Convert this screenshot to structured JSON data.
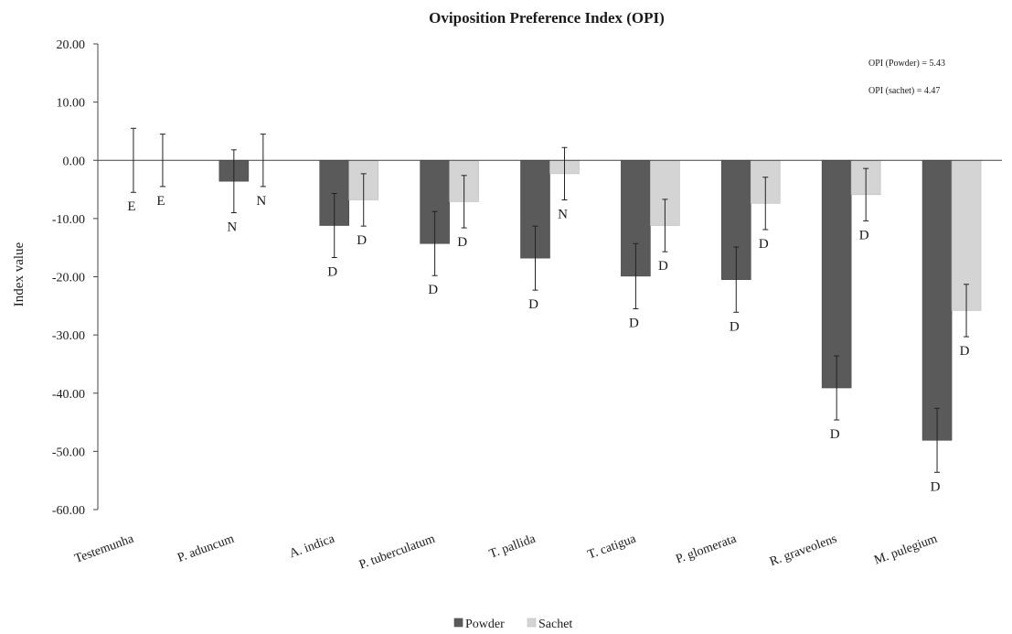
{
  "chart_data": {
    "type": "bar",
    "title": "Oviposition Preference Index (OPI)",
    "ylabel": "Index value",
    "xlabel": "",
    "ylim": [
      -60,
      20
    ],
    "yticks": [
      20,
      10,
      0,
      -10,
      -20,
      -30,
      -40,
      -50,
      -60
    ],
    "ytick_labels": [
      "20.00",
      "10.00",
      "0.00",
      "-10.00",
      "-20.00",
      "-30.00",
      "-40.00",
      "-50.00",
      "-60.00"
    ],
    "categories": [
      "Testemunha",
      "P. aduncum",
      "A. indica",
      "P. tuberculatum",
      "T. pallida",
      "T. catigua",
      "P. glomerata",
      "R. graveolens",
      "M. pulegium"
    ],
    "series": [
      {
        "name": "Powder",
        "color": "#5a5a5a",
        "values": [
          0,
          -3.6,
          -11.2,
          -14.3,
          -16.8,
          -19.9,
          -20.5,
          -39.1,
          -48.1
        ],
        "errors": [
          5.5,
          5.4,
          5.5,
          5.5,
          5.5,
          5.6,
          5.6,
          5.5,
          5.5
        ],
        "labels": [
          "E",
          "N",
          "D",
          "D",
          "D",
          "D",
          "D",
          "D",
          "D"
        ]
      },
      {
        "name": "Sachet",
        "color": "#d4d4d4",
        "values": [
          0,
          0,
          -6.8,
          -7.1,
          -2.3,
          -11.2,
          -7.4,
          -5.9,
          -25.8
        ],
        "errors": [
          4.5,
          4.5,
          4.5,
          4.5,
          4.5,
          4.5,
          4.5,
          4.5,
          4.5
        ],
        "labels": [
          "E",
          "N",
          "D",
          "D",
          "N",
          "D",
          "D",
          "D",
          "D"
        ]
      }
    ],
    "annotations": [
      "OPI (Powder) = 5.43",
      "OPI (sachet) = 4.47"
    ],
    "grid": false,
    "legend_position": "bottom"
  }
}
